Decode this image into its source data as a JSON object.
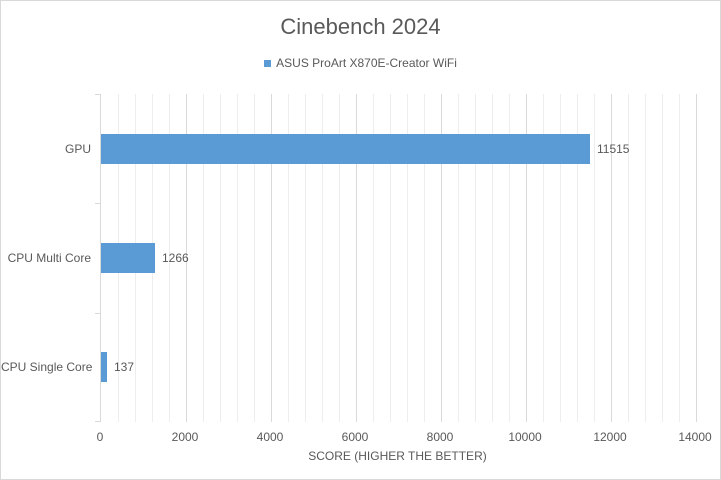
{
  "window": {
    "background": "#FFFFFF",
    "border_color": "#D9D9D9"
  },
  "chart_data": {
    "type": "bar",
    "orientation": "horizontal",
    "title": "Cinebench 2024",
    "categories": [
      "GPU",
      "CPU Multi Core",
      "CPU Single Core"
    ],
    "series": [
      {
        "name": "ASUS ProArt X870E-Creator WiFi",
        "values": [
          11515,
          1266,
          137
        ]
      }
    ],
    "data_labels": [
      "11515",
      "1266",
      "137"
    ],
    "xlabel": "SCORE (HIGHER THE BETTER)",
    "ylabel": "",
    "xlim": [
      0,
      14000
    ],
    "x_major_ticks": [
      "0",
      "2000",
      "4000",
      "6000",
      "8000",
      "10000",
      "12000",
      "14000"
    ],
    "x_major_unit": 2000,
    "x_minor_unit": 400,
    "grid": true,
    "legend_position": "top-center",
    "colors": {
      "bar": "#5B9BD5",
      "text": "#595959",
      "gridline_major": "#D9D9D9",
      "gridline_minor": "#EDEDED",
      "axis_line": "#D9D9D9"
    }
  }
}
